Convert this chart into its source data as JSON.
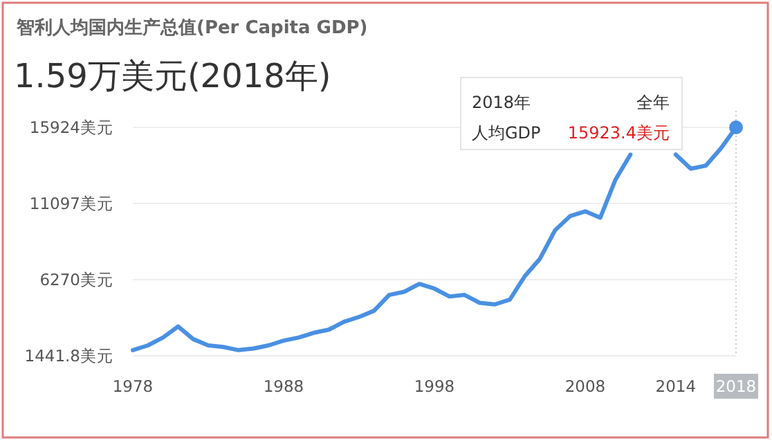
{
  "chart_data": {
    "type": "line",
    "title": "智利人均国内生产总值(Per Capita GDP)",
    "subtitle": "1.59万美元(2018年)",
    "x": [
      1978,
      1979,
      1980,
      1981,
      1982,
      1983,
      1984,
      1985,
      1986,
      1987,
      1988,
      1989,
      1990,
      1991,
      1992,
      1993,
      1994,
      1995,
      1996,
      1997,
      1998,
      1999,
      2000,
      2001,
      2002,
      2003,
      2004,
      2005,
      2006,
      2007,
      2008,
      2009,
      2010,
      2011,
      2012,
      2013,
      2014,
      2015,
      2016,
      2017,
      2018
    ],
    "series": [
      {
        "color": "#4a90e2",
        "values": [
          1800,
          2100,
          2600,
          3300,
          2500,
          2100,
          2000,
          1800,
          1900,
          2100,
          2400,
          2600,
          2900,
          3100,
          3600,
          3900,
          4300,
          5300,
          5500,
          6000,
          5700,
          5200,
          5300,
          4800,
          4700,
          5000,
          6500,
          7600,
          9400,
          10300,
          10600,
          10200,
          12600,
          14200,
          null,
          null,
          14200,
          13300,
          13500,
          14600,
          15923.4
        ]
      }
    ],
    "xlim": [
      1978,
      2018
    ],
    "xticks": [
      1978,
      1988,
      1998,
      2008,
      2014,
      2018
    ],
    "ylim": [
      1441.8,
      15924
    ],
    "yticks": [
      {
        "value": 1441.8,
        "label": "1441.8美元"
      },
      {
        "value": 6270,
        "label": "6270美元"
      },
      {
        "value": 11097,
        "label": "11097美元"
      },
      {
        "value": 15924,
        "label": "15924美元"
      }
    ],
    "grid": "y",
    "marker": "none",
    "line_style": "solid",
    "annotations": [
      "2018年",
      "全年",
      "人均GDP",
      "15923.4美元"
    ]
  }
}
